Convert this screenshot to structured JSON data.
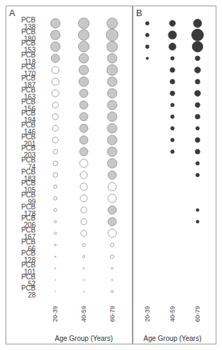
{
  "chart_data": [
    {
      "type": "scatter",
      "title": "A",
      "x_label": "Age Group (Years)",
      "x": [
        "20-39",
        "40-59",
        "60-79"
      ],
      "y": [
        "PCB 138",
        "PCB 180",
        "PCB 153",
        "PCB 118",
        "PCB 170",
        "PCB 187",
        "PCB 163",
        "PCB 156",
        "PCB 194",
        "PCB 146",
        "PCB 201",
        "PCB 203",
        "PCB 74",
        "PCB 183",
        "PCB 105",
        "PCB 99",
        "PCB 178",
        "PCB 206",
        "PCB 167",
        "PCB 66",
        "PCB 128",
        "PCB 101",
        "PCB 52",
        "PCB 28"
      ],
      "sizes": [
        [
          8,
          9,
          9
        ],
        [
          8,
          9,
          10
        ],
        [
          8,
          9,
          9
        ],
        [
          7,
          8,
          8
        ],
        [
          6,
          8,
          9
        ],
        [
          6,
          8,
          8
        ],
        [
          6,
          7,
          8
        ],
        [
          5,
          7,
          8
        ],
        [
          5,
          7,
          8
        ],
        [
          5,
          7,
          8
        ],
        [
          5,
          7,
          8
        ],
        [
          4,
          7,
          8
        ],
        [
          4,
          7,
          8
        ],
        [
          4,
          6,
          7
        ],
        [
          3,
          6,
          7
        ],
        [
          3,
          6,
          7
        ],
        [
          2.5,
          5,
          7
        ],
        [
          2,
          5,
          7
        ],
        [
          2,
          5,
          7
        ],
        [
          1.5,
          2.5,
          3
        ],
        [
          1,
          2,
          3
        ],
        [
          0.8,
          1,
          1.5
        ],
        [
          0.5,
          0.8,
          1
        ],
        [
          0.5,
          0.8,
          2
        ]
      ],
      "colors": [
        [
          "#c8c8c8",
          "#c8c8c8",
          "#c8c8c8"
        ],
        [
          "#c8c8c8",
          "#c8c8c8",
          "#c8c8c8"
        ],
        [
          "#c8c8c8",
          "#c8c8c8",
          "#c8c8c8"
        ],
        [
          "#c8c8c8",
          "#c8c8c8",
          "#c8c8c8"
        ],
        [
          "#ffffff",
          "#c8c8c8",
          "#c8c8c8"
        ],
        [
          "#ffffff",
          "#c8c8c8",
          "#c8c8c8"
        ],
        [
          "#ffffff",
          "#c8c8c8",
          "#c8c8c8"
        ],
        [
          "#ffffff",
          "#c8c8c8",
          "#c8c8c8"
        ],
        [
          "#ffffff",
          "#c8c8c8",
          "#c8c8c8"
        ],
        [
          "#ffffff",
          "#c8c8c8",
          "#c8c8c8"
        ],
        [
          "#ffffff",
          "#c8c8c8",
          "#c8c8c8"
        ],
        [
          "#ffffff",
          "#c8c8c8",
          "#c8c8c8"
        ],
        [
          "#ffffff",
          "#ffffff",
          "#c8c8c8"
        ],
        [
          "#ffffff",
          "#ffffff",
          "#c8c8c8"
        ],
        [
          "#ffffff",
          "#ffffff",
          "#ffffff"
        ],
        [
          "#ffffff",
          "#ffffff",
          "#ffffff"
        ],
        [
          "#ffffff",
          "#ffffff",
          "#c8c8c8"
        ],
        [
          "#ffffff",
          "#ffffff",
          "#c8c8c8"
        ],
        [
          "#ffffff",
          "#ffffff",
          "#ffffff"
        ],
        [
          "#ffffff",
          "#ffffff",
          "#ffffff"
        ],
        [
          "#ffffff",
          "#ffffff",
          "#ffffff"
        ],
        [
          "#ffffff",
          "#ffffff",
          "#ffffff"
        ],
        [
          "#ffffff",
          "#ffffff",
          "#ffffff"
        ],
        [
          "#ffffff",
          "#ffffff",
          "#ffffff"
        ]
      ]
    },
    {
      "type": "scatter",
      "title": "B",
      "x_label": "Age Group (Years)",
      "tick_labels": "x",
      "x": [
        "20-39",
        "40-59",
        "60-79"
      ],
      "y": [
        "PCB 138",
        "PCB 180",
        "PCB 153",
        "PCB 118",
        "PCB 170",
        "PCB 187",
        "PCB 163",
        "PCB 156",
        "PCB 194",
        "PCB 146",
        "PCB 201",
        "PCB 203",
        "PCB 74",
        "PCB 183",
        "PCB 105",
        "PCB 99",
        "PCB 178",
        "PCB 206",
        "PCB 167",
        "PCB 66",
        "PCB 128",
        "PCB 101",
        "PCB 52",
        "PCB 28"
      ],
      "sizes": [
        [
          3,
          5,
          7
        ],
        [
          3,
          7,
          10
        ],
        [
          3,
          6,
          9
        ],
        [
          2,
          3,
          4
        ],
        [
          null,
          4,
          5
        ],
        [
          null,
          4,
          4
        ],
        [
          null,
          4,
          5
        ],
        [
          null,
          3,
          4
        ],
        [
          null,
          3,
          4
        ],
        [
          null,
          3,
          3
        ],
        [
          null,
          3,
          4
        ],
        [
          null,
          3,
          4
        ],
        [
          null,
          null,
          3
        ],
        [
          null,
          null,
          3
        ],
        [
          null,
          null,
          null
        ],
        [
          null,
          null,
          null
        ],
        [
          null,
          null,
          2.5
        ],
        [
          null,
          null,
          2.5
        ],
        [
          null,
          null,
          null
        ],
        [
          null,
          null,
          null
        ],
        [
          null,
          null,
          null
        ],
        [
          null,
          null,
          null
        ],
        [
          null,
          null,
          null
        ],
        [
          null,
          null,
          null
        ]
      ],
      "color": "#3a3a3a"
    }
  ]
}
